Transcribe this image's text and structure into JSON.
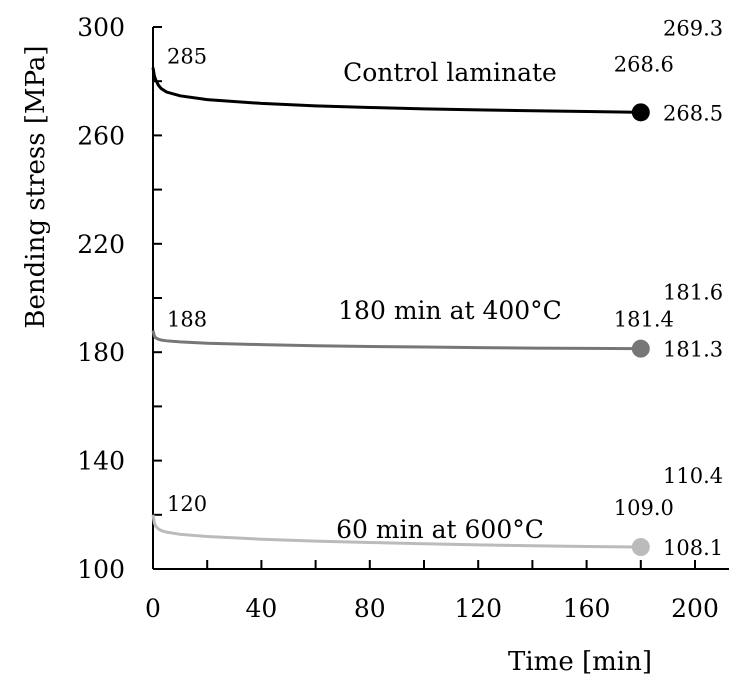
{
  "chart_data": {
    "type": "line",
    "xlabel": "Time [min]",
    "ylabel": "Bending stress [MPa]",
    "xlim": [
      0,
      215
    ],
    "ylim": [
      100,
      300
    ],
    "xticks": [
      0,
      40,
      80,
      120,
      160,
      200
    ],
    "yticks": [
      100,
      140,
      180,
      220,
      260,
      300
    ],
    "x_minor_step": 20,
    "y_minor_step": 20,
    "grid": false,
    "series": [
      {
        "name": "Control laminate",
        "color": "#000000",
        "initial_value": "285",
        "initial": 285,
        "end_values": [
          "269.3",
          "268.6",
          "268.5"
        ],
        "x": [
          0,
          0.5,
          1,
          2,
          3,
          5,
          10,
          20,
          40,
          60,
          80,
          100,
          120,
          140,
          160,
          180
        ],
        "y": [
          285,
          282,
          280.5,
          278.5,
          277.3,
          276,
          274.6,
          273.2,
          271.8,
          270.9,
          270.3,
          269.8,
          269.4,
          269.1,
          268.8,
          268.5
        ],
        "end_marker": [
          180,
          268.5
        ]
      },
      {
        "name": "180 min at 400°C",
        "color": "#777777",
        "initial_value": "188",
        "initial": 188,
        "end_values": [
          "181.6",
          "181.4",
          "181.3"
        ],
        "x": [
          0,
          0.5,
          1,
          2,
          3,
          5,
          10,
          20,
          40,
          60,
          80,
          100,
          120,
          140,
          160,
          180
        ],
        "y": [
          188,
          186,
          185.3,
          184.8,
          184.5,
          184.2,
          183.8,
          183.3,
          182.8,
          182.4,
          182.1,
          181.9,
          181.7,
          181.5,
          181.4,
          181.3
        ],
        "end_marker": [
          180,
          181.3
        ]
      },
      {
        "name": "60 min at 600°C",
        "color": "#bbbbbb",
        "initial_value": "120",
        "initial": 120,
        "end_values": [
          "110.4",
          "109.0",
          "108.1"
        ],
        "x": [
          0,
          0.5,
          1,
          2,
          3,
          5,
          10,
          20,
          40,
          60,
          80,
          100,
          120,
          140,
          160,
          180
        ],
        "y": [
          120,
          117,
          115.8,
          114.8,
          114.2,
          113.6,
          112.8,
          112,
          111,
          110.3,
          109.8,
          109.3,
          108.9,
          108.6,
          108.3,
          108.1
        ],
        "end_marker": [
          180,
          108.1
        ]
      }
    ]
  }
}
